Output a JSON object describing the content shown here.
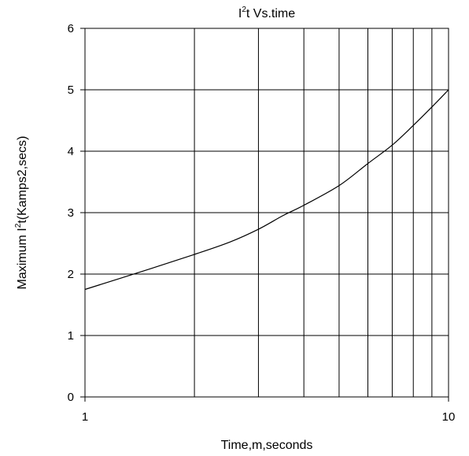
{
  "chart_data": {
    "type": "line",
    "title": {
      "prefix": "I",
      "superscript": "2",
      "suffix": "t  Vs.time"
    },
    "xlabel": "Time,m,seconds",
    "ylabel": {
      "prefix": "Maximum I",
      "superscript": "2",
      "suffix": "t(Kamps2,secs)"
    },
    "x_scale": "log",
    "xlim": [
      1,
      10
    ],
    "ylim": [
      0,
      6
    ],
    "x_tick_labels": [
      "1",
      "10"
    ],
    "y_tick_labels": [
      "0",
      "1",
      "2",
      "3",
      "4",
      "5",
      "6"
    ],
    "grid": true,
    "line_color": "#000000",
    "series": [
      {
        "x": [
          1,
          1.5,
          2,
          2.5,
          3,
          3.5,
          4,
          5,
          6,
          7,
          8,
          9,
          10
        ],
        "values": [
          1.75,
          2.08,
          2.32,
          2.52,
          2.73,
          2.95,
          3.12,
          3.44,
          3.8,
          4.1,
          4.42,
          4.72,
          5.0
        ]
      }
    ]
  }
}
